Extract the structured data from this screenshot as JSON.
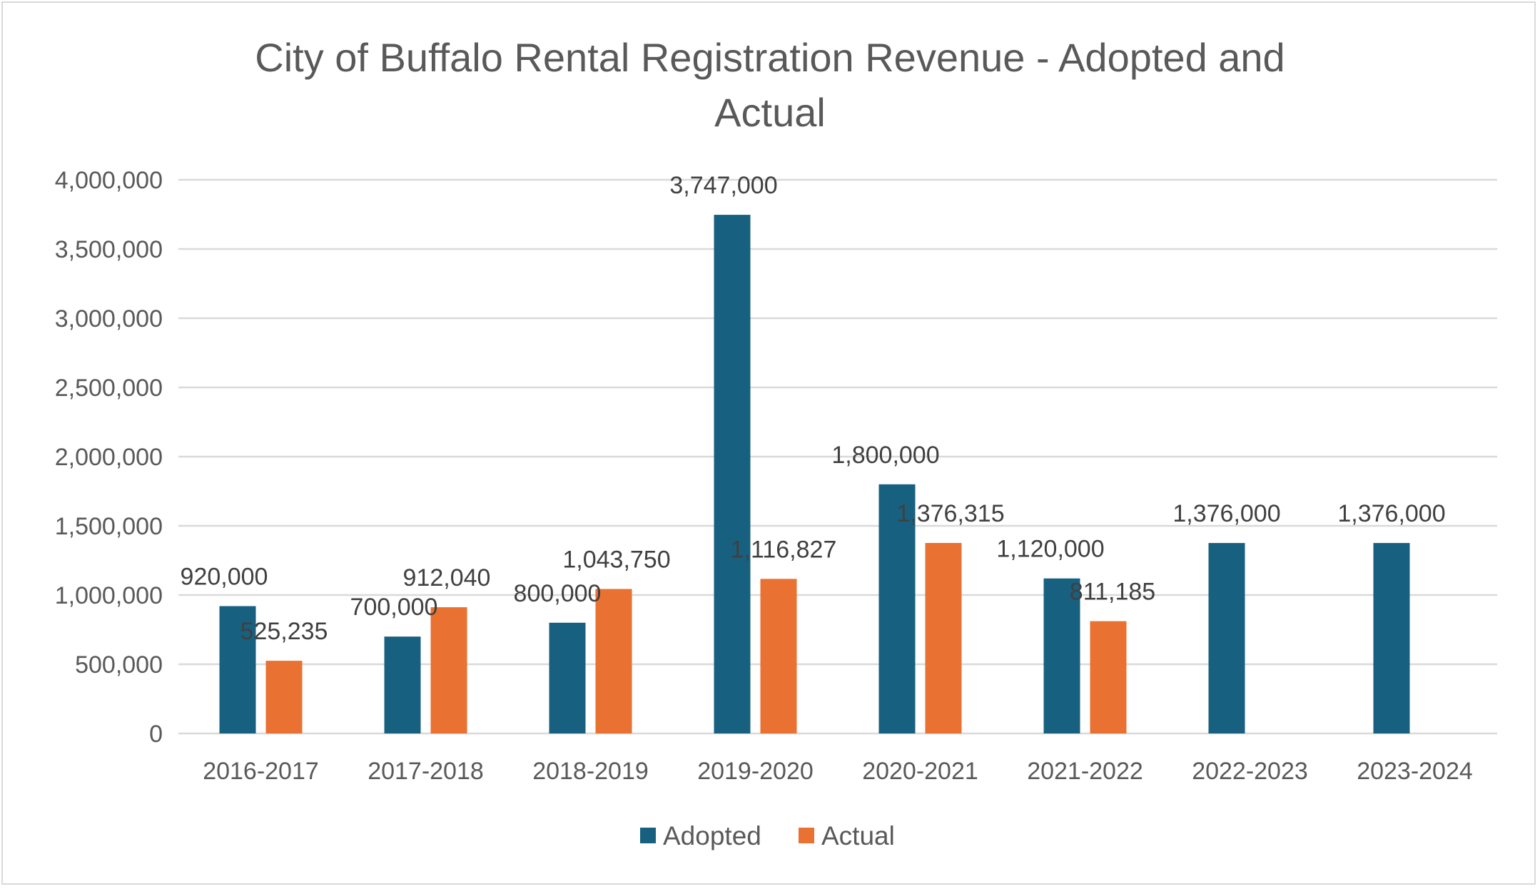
{
  "chart_data": {
    "type": "bar",
    "title_lines": [
      "City of Buffalo Rental Registration Revenue - Adopted and",
      "Actual"
    ],
    "title": "City of Buffalo Rental Registration Revenue - Adopted and Actual",
    "xlabel": "",
    "ylabel": "",
    "ylim": [
      0,
      4000000
    ],
    "yticks": [
      0,
      500000,
      1000000,
      1500000,
      2000000,
      2500000,
      3000000,
      3500000,
      4000000
    ],
    "ytick_labels": [
      "0",
      "500,000",
      "1,000,000",
      "1,500,000",
      "2,000,000",
      "2,500,000",
      "3,000,000",
      "3,500,000",
      "4,000,000"
    ],
    "grid": true,
    "legend_position": "bottom",
    "categories": [
      "2016-2017",
      "2017-2018",
      "2018-2019",
      "2019-2020",
      "2020-2021",
      "2021-2022",
      "2022-2023",
      "2023-2024"
    ],
    "series": [
      {
        "name": "Adopted",
        "color": "#18607f",
        "values": [
          920000,
          700000,
          800000,
          3747000,
          1800000,
          1120000,
          1376000,
          1376000
        ],
        "labels": [
          "920,000",
          "700,000",
          "800,000",
          "3,747,000",
          "1,800,000",
          "1,120,000",
          "1,376,000",
          "1,376,000"
        ]
      },
      {
        "name": "Actual",
        "color": "#e97132",
        "values": [
          525235,
          912040,
          1043750,
          1116827,
          1376315,
          811185,
          null,
          null
        ],
        "labels": [
          "525,235",
          "912,040",
          "1,043,750",
          "1,116,827",
          "1,376,315",
          "811,185",
          null,
          null
        ]
      }
    ],
    "gridline_color": "#d9d9d9"
  }
}
